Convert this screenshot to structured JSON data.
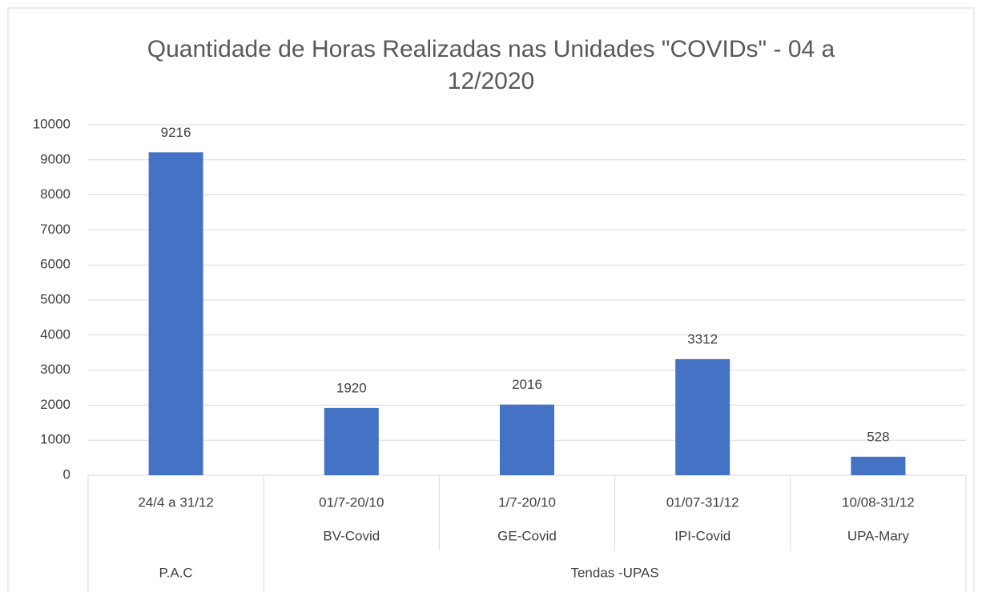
{
  "chart_data": {
    "type": "bar",
    "title": "Quantidade de Horas Realizadas nas Unidades \"COVIDs\" - 04 a 12/2020",
    "categories": [
      "24/4 a 31/12",
      "01/7-20/10",
      "1/7-20/10",
      "01/07-31/12",
      "10/08-31/12"
    ],
    "subcategories": [
      null,
      "BV-Covid",
      "GE-Covid",
      "IPI-Covid",
      "UPA-Mary"
    ],
    "groups": [
      {
        "name": "P.A.C",
        "size": 1
      },
      {
        "name": "Tendas -UPAS",
        "size": 4
      }
    ],
    "values": [
      9216,
      1920,
      2016,
      3312,
      528
    ],
    "color": "#4472c4",
    "ylim": [
      0,
      10000
    ],
    "yticks": [
      0,
      1000,
      2000,
      3000,
      4000,
      5000,
      6000,
      7000,
      8000,
      9000,
      10000
    ],
    "grid": true
  }
}
